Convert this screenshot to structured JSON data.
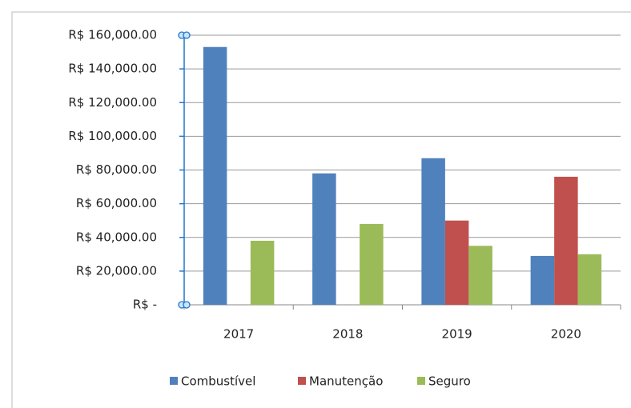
{
  "chart_data": {
    "type": "bar",
    "categories": [
      "2017",
      "2018",
      "2019",
      "2020"
    ],
    "series": [
      {
        "name": "Combustível",
        "color": "#4f81bd",
        "values": [
          153000,
          78000,
          87000,
          29000
        ]
      },
      {
        "name": "Manutenção",
        "color": "#c0504d",
        "values": [
          0,
          0,
          50000,
          76000
        ]
      },
      {
        "name": "Seguro",
        "color": "#9bbb59",
        "values": [
          38000,
          48000,
          35000,
          30000
        ]
      }
    ],
    "ylim": [
      0,
      160000
    ],
    "yticks": [
      {
        "value": 0,
        "label": "R$ -"
      },
      {
        "value": 20000,
        "label": "R$ 20,000.00"
      },
      {
        "value": 40000,
        "label": "R$ 40,000.00"
      },
      {
        "value": 60000,
        "label": "R$ 60,000.00"
      },
      {
        "value": 80000,
        "label": "R$ 80,000.00"
      },
      {
        "value": 100000,
        "label": "R$ 100,000.00"
      },
      {
        "value": 120000,
        "label": "R$ 120,000.00"
      },
      {
        "value": 140000,
        "label": "R$ 140,000.00"
      },
      {
        "value": 160000,
        "label": "R$ 160,000.00"
      }
    ],
    "grid": true,
    "legend": "bottom"
  }
}
